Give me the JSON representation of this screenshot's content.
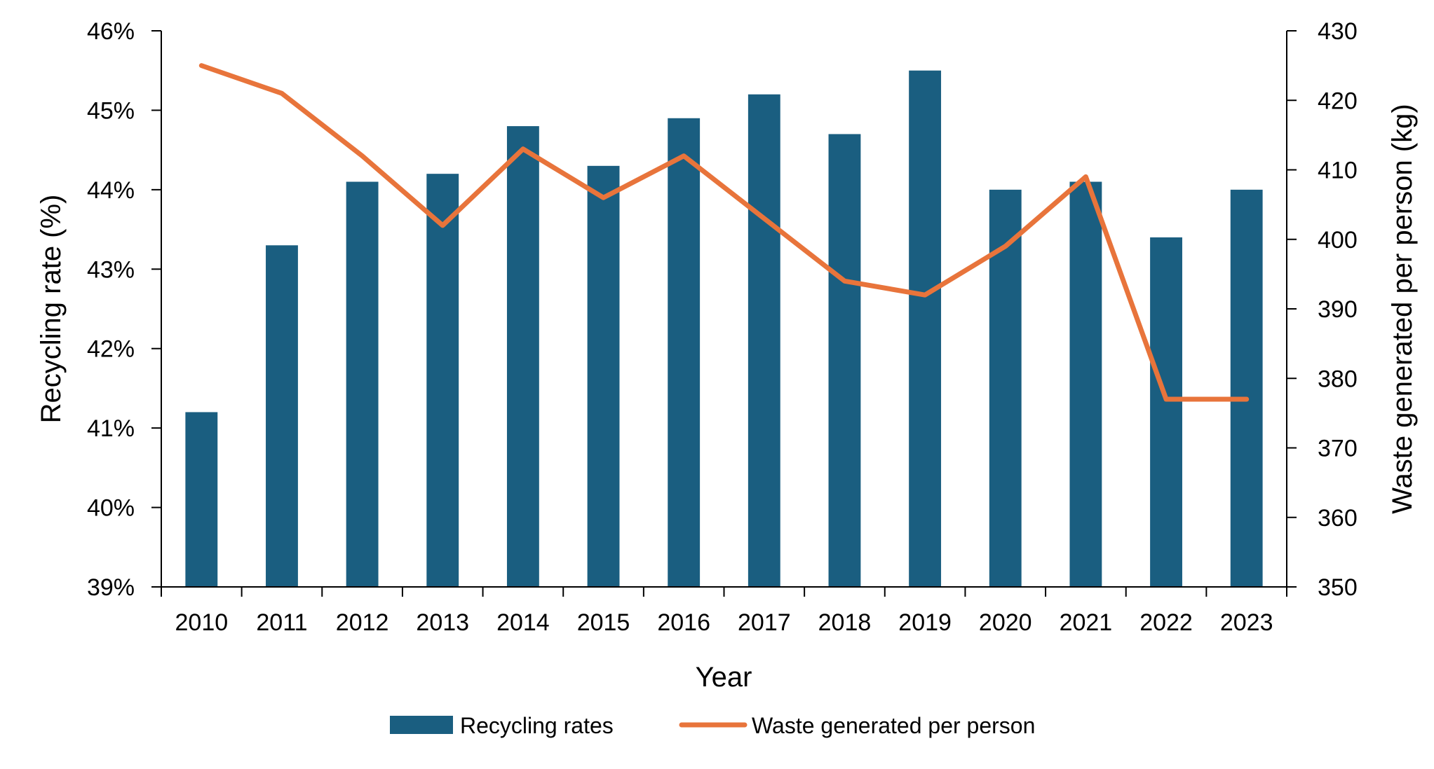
{
  "chart_data": {
    "type": "bar",
    "title": "",
    "xlabel": "Year",
    "ylabel": "Recycling rate (%)",
    "y2label": "Waste generated per person (kg)",
    "categories": [
      "2010",
      "2011",
      "2012",
      "2013",
      "2014",
      "2015",
      "2016",
      "2017",
      "2018",
      "2019",
      "2020",
      "2021",
      "2022",
      "2023"
    ],
    "ylim": [
      39,
      46
    ],
    "y_ticks": [
      39,
      40,
      41,
      42,
      43,
      44,
      45,
      46
    ],
    "y_tick_labels": [
      "39%",
      "40%",
      "41%",
      "42%",
      "43%",
      "44%",
      "45%",
      "46%"
    ],
    "y2lim": [
      350,
      430
    ],
    "y2_ticks": [
      350,
      360,
      370,
      380,
      390,
      400,
      410,
      420,
      430
    ],
    "y2_tick_labels": [
      "350",
      "360",
      "370",
      "380",
      "390",
      "400",
      "410",
      "420",
      "430"
    ],
    "series": [
      {
        "name": "Recycling rates",
        "type": "bar",
        "axis": "left",
        "color": "#1a5e80",
        "values": [
          41.2,
          43.3,
          44.1,
          44.2,
          44.8,
          44.3,
          44.9,
          45.2,
          44.7,
          45.5,
          44.0,
          44.1,
          43.4,
          44.0
        ]
      },
      {
        "name": "Waste generated per person",
        "type": "line",
        "axis": "right",
        "color": "#e8743b",
        "values": [
          425,
          421,
          412,
          402,
          413,
          406,
          412,
          403,
          394,
          392,
          399,
          409,
          377,
          377
        ]
      }
    ],
    "grid": false,
    "legend": "bottom"
  }
}
